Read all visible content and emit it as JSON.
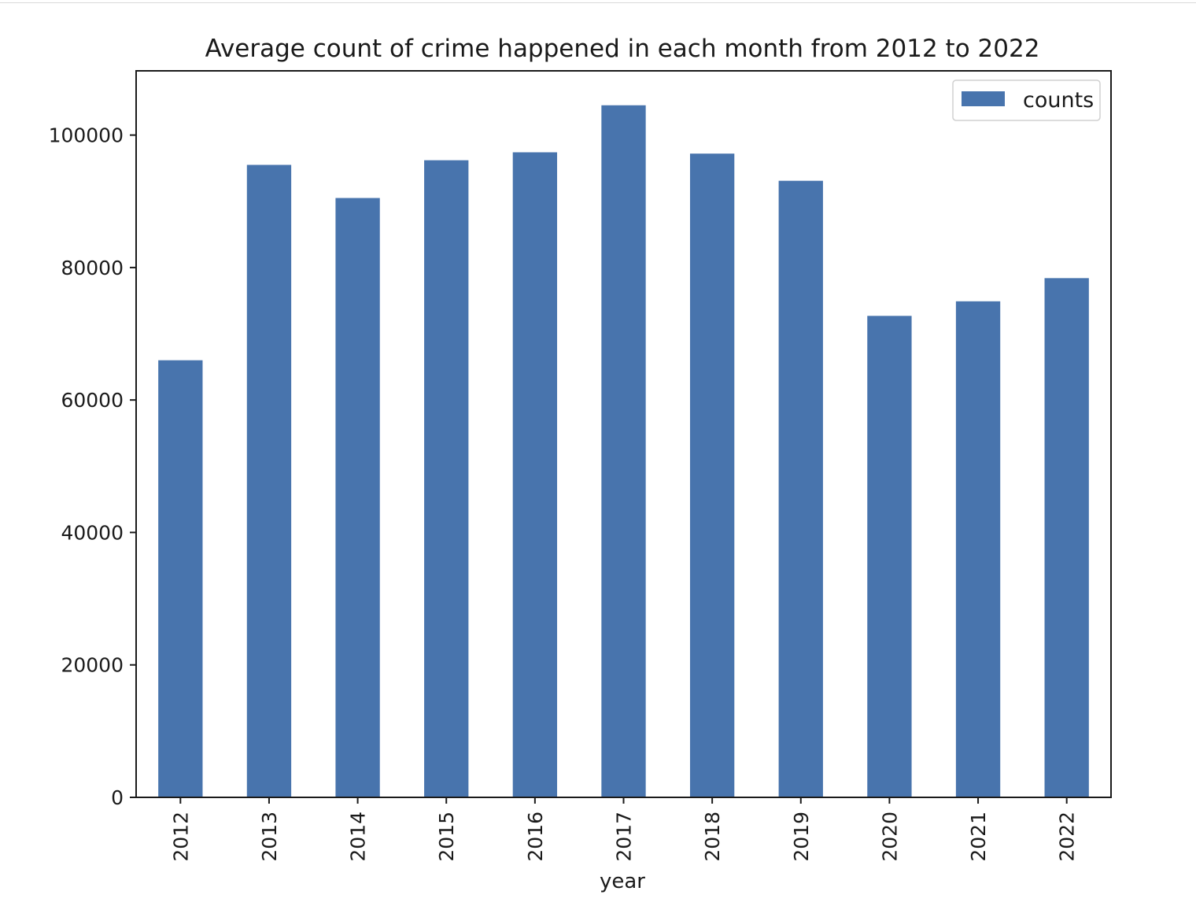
{
  "chart_data": {
    "type": "bar",
    "title": "Average count of crime happened in each month from 2012 to 2022",
    "xlabel": "year",
    "ylabel": "",
    "categories": [
      "2012",
      "2013",
      "2014",
      "2015",
      "2016",
      "2017",
      "2018",
      "2019",
      "2020",
      "2021",
      "2022"
    ],
    "series": [
      {
        "name": "counts",
        "color": "#4874ad",
        "values": [
          66000,
          95500,
          90500,
          96200,
          97400,
          104500,
          97200,
          93100,
          72700,
          74900,
          78400
        ]
      }
    ],
    "ylim": [
      0,
      109700
    ],
    "yticks": [
      0,
      20000,
      40000,
      60000,
      80000,
      100000
    ],
    "ytick_labels": [
      "0",
      "20000",
      "40000",
      "60000",
      "80000",
      "100000"
    ],
    "legend": {
      "position": "top-right"
    },
    "grid": false
  }
}
